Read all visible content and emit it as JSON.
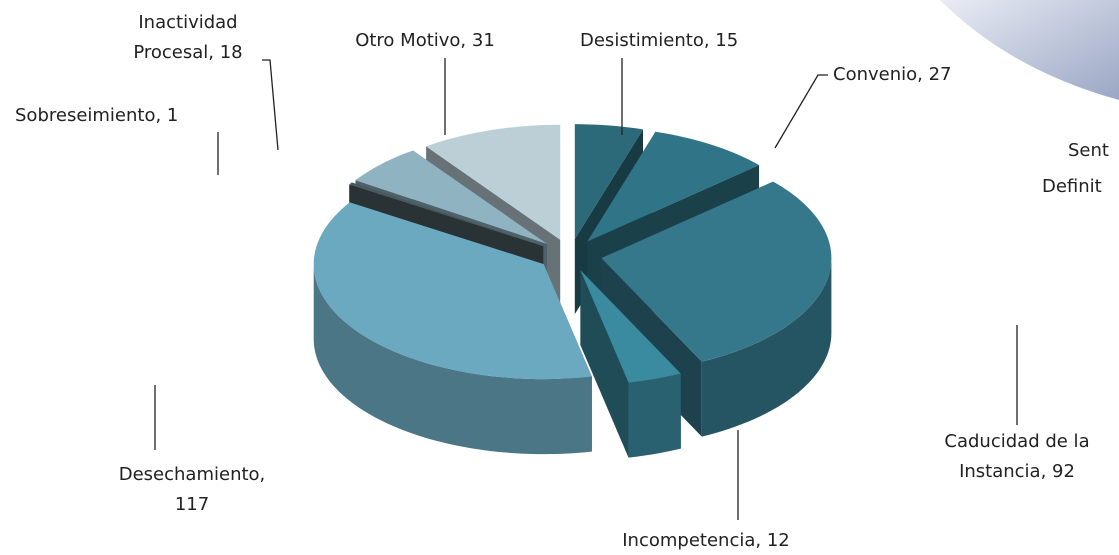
{
  "chart_data": {
    "type": "pie3d",
    "labels": [
      [
        "Desistimiento, 15"
      ],
      [
        "Convenio, 27"
      ],
      [
        "Caducidad de la",
        "Instancia, 92"
      ],
      [
        "Incompetencia, 12"
      ],
      [
        "Desechamiento,",
        "117"
      ],
      [
        "Sobreseimiento, 1"
      ],
      [
        "Inactividad",
        "Procesal, 18"
      ],
      [
        "Otro Motivo, 31"
      ]
    ],
    "values": [
      15,
      27,
      92,
      12,
      117,
      1,
      18,
      31
    ],
    "colors": [
      "#2c6a7a",
      "#2f7487",
      "#35788c",
      "#3a8aa0",
      "#6aa9bf",
      "#4a5a60",
      "#8fb3c0",
      "#bccfd6"
    ],
    "annotations": [
      "Sent",
      "Definit"
    ]
  }
}
